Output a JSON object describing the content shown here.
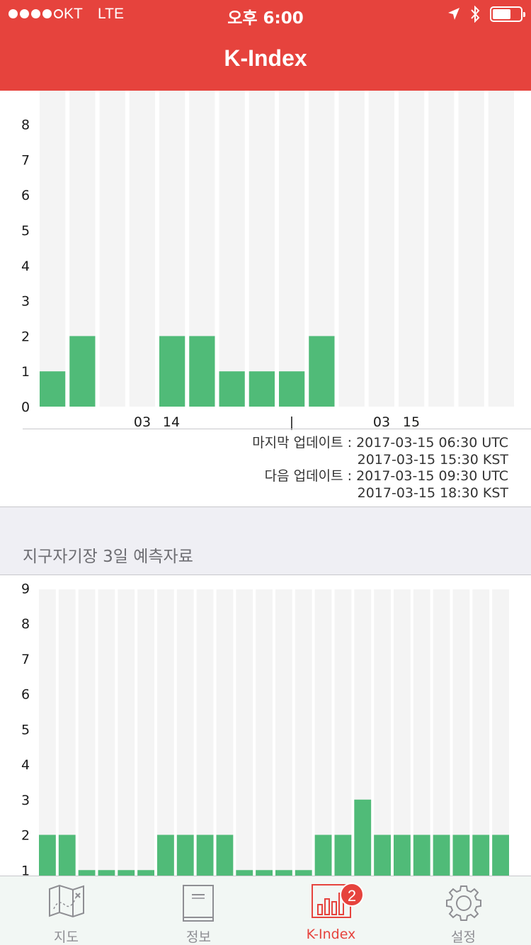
{
  "status_bar": {
    "carrier": "KT",
    "network": "LTE",
    "time": "오후 6:00"
  },
  "nav": {
    "title": "K-Index"
  },
  "chart_data": [
    {
      "type": "bar",
      "ylim": [
        0,
        9
      ],
      "yticks": [
        "0",
        "1",
        "2",
        "3",
        "4",
        "5",
        "6",
        "7",
        "8"
      ],
      "values": [
        1,
        2,
        0,
        0,
        2,
        2,
        1,
        1,
        1,
        2,
        0,
        0,
        0,
        0,
        0,
        0
      ],
      "x_labels": [
        "03",
        "14",
        "|",
        "03",
        "15"
      ],
      "colors": {
        "bar": "#50bb78",
        "track": "#f4f4f4"
      }
    },
    {
      "type": "bar",
      "ylim": [
        0,
        9
      ],
      "yticks": [
        "1",
        "2",
        "3",
        "4",
        "5",
        "6",
        "7",
        "8",
        "9"
      ],
      "values": [
        2,
        2,
        1,
        1,
        1,
        1,
        2,
        2,
        2,
        2,
        1,
        1,
        1,
        1,
        2,
        2,
        3,
        2,
        2,
        2,
        2,
        2,
        2,
        2
      ],
      "colors": {
        "bar": "#50bb78",
        "track": "#f4f4f4"
      }
    }
  ],
  "update_info": {
    "last_label": "마지막 업데이트 : 2017-03-15 06:30 UTC",
    "last_kst": "2017-03-15 15:30 KST",
    "next_label": "다음 업데이트 : 2017-03-15 09:30 UTC",
    "next_kst": "2017-03-15 18:30 KST"
  },
  "section": {
    "title": "지구자기장 3일 예측자료"
  },
  "tabs": [
    {
      "label": "지도",
      "icon": "map-icon"
    },
    {
      "label": "정보",
      "icon": "book-icon"
    },
    {
      "label": "K-Index",
      "icon": "bar-chart-icon",
      "badge": "2"
    },
    {
      "label": "설정",
      "icon": "gear-icon"
    }
  ]
}
